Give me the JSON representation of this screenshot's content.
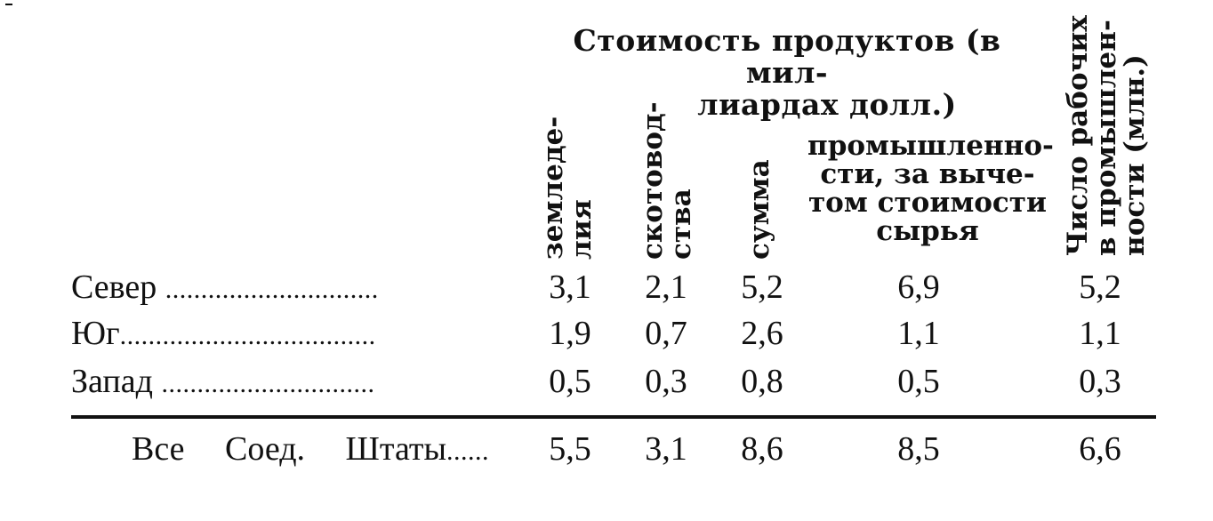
{
  "header": {
    "group_line1": "Стоимость продуктов (в мил-",
    "group_line2": "лиардах долл.)",
    "col1_line1": "земледе-",
    "col1_line2": "лия",
    "col2_line1": "скотовод-",
    "col2_line2": "ства",
    "col3_line1": "сумма",
    "col4_line1": "промышленно-",
    "col4_line2": "сти, за выче-",
    "col4_line3": "том стоимости",
    "col4_line4": "сырья",
    "col5_line1": "Число рабочих",
    "col5_line2": "в промышлен-",
    "col5_line3": "ности (млн.)"
  },
  "rows": [
    {
      "name": "Север",
      "dots": "..............................",
      "values": [
        "3,1",
        "2,1",
        "5,2",
        "6,9",
        "5,2"
      ]
    },
    {
      "name": "Юг",
      "dots": "....................................",
      "values": [
        "1,9",
        "0,7",
        "2,6",
        "1,1",
        "1,1"
      ]
    },
    {
      "name": "Запад",
      "dots": "..............................",
      "values": [
        "0,5",
        "0,3",
        "0,8",
        "0,5",
        "0,3"
      ]
    }
  ],
  "total": {
    "name": "Все Соед. Штаты",
    "dots": "......",
    "values": [
      "5,5",
      "3,1",
      "8,6",
      "8,5",
      "6,6"
    ]
  }
}
